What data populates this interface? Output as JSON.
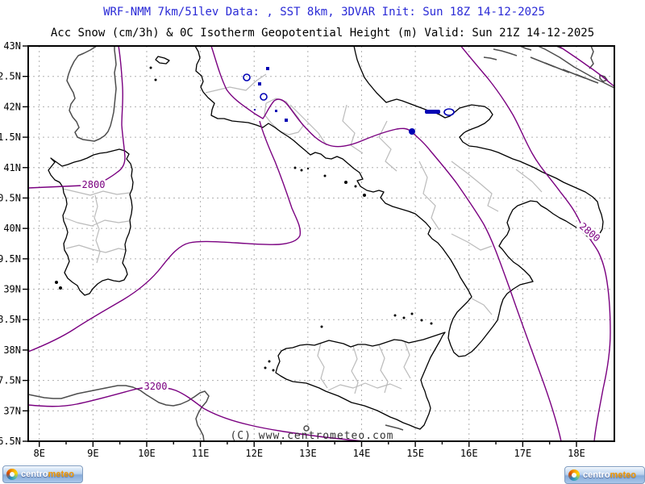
{
  "titles": {
    "line1": "WRF-NMM 7km/51lev  Data: , SST 8km, 3DVAR  Init: Sun 18Z 14-12-2025",
    "line2": "Acc Snow (cm/3h) & 0C Isotherm Geopotential Height (m)  Valid: Sun 21Z 14-12-2025"
  },
  "axes": {
    "lat_labels": [
      "43N",
      "42.5N",
      "42N",
      "41.5N",
      "41N",
      "40.5N",
      "40N",
      "39.5N",
      "39N",
      "38.5N",
      "38N",
      "37.5N",
      "37N",
      "36.5N"
    ],
    "lon_labels": [
      "8E",
      "9E",
      "10E",
      "11E",
      "12E",
      "13E",
      "14E",
      "15E",
      "16E",
      "17E",
      "18E"
    ]
  },
  "contour_labels": {
    "left_2800": "2800",
    "right_2800": "2800",
    "sicily_3200": "3200"
  },
  "watermark": "(C) www.centrometeo.com",
  "logos": {
    "left": {
      "prefix": "centro",
      "suffix": "meteo"
    },
    "right": {
      "prefix": "centro",
      "suffix": "meteo"
    }
  },
  "colors": {
    "title_blue": "#2929d6",
    "contour_purple": "#7a0080",
    "snow_blue": "#0000b4",
    "coast_black": "#000000",
    "coast_gray": "#4d4d4d",
    "border_gray": "#bbbbbb",
    "grid_gray": "#b0b0b0"
  },
  "map_frame": {
    "left_lon": "8E",
    "right_lon": "18E",
    "top_lat": "43N",
    "bottom_lat": "36.5N"
  }
}
